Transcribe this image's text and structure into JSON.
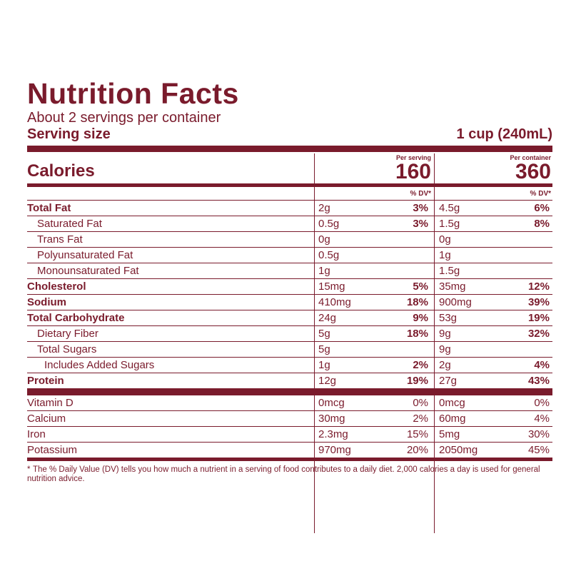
{
  "label": {
    "title": "Nutrition Facts",
    "servings": "About 2 servings per container",
    "serving_size_label": "Serving size",
    "serving_size_value": "1 cup (240mL)",
    "calories_label": "Calories",
    "per_serving_label": "Per serving",
    "per_container_label": "Per container",
    "calories_serving": "160",
    "calories_container": "360",
    "dv_header": "% DV*",
    "nutrients": [
      {
        "name": "Total Fat",
        "s_amt": "2g",
        "s_dv": "3%",
        "c_amt": "4.5g",
        "c_dv": "6%"
      },
      {
        "name": "Saturated Fat",
        "s_amt": "0.5g",
        "s_dv": "3%",
        "c_amt": "1.5g",
        "c_dv": "8%"
      },
      {
        "name": "Trans Fat",
        "s_amt": "0g",
        "s_dv": "",
        "c_amt": "0g",
        "c_dv": ""
      },
      {
        "name": "Polyunsaturated Fat",
        "s_amt": "0.5g",
        "s_dv": "",
        "c_amt": "1g",
        "c_dv": ""
      },
      {
        "name": "Monounsaturated Fat",
        "s_amt": "1g",
        "s_dv": "",
        "c_amt": "1.5g",
        "c_dv": ""
      },
      {
        "name": "Cholesterol",
        "s_amt": "15mg",
        "s_dv": "5%",
        "c_amt": "35mg",
        "c_dv": "12%"
      },
      {
        "name": "Sodium",
        "s_amt": "410mg",
        "s_dv": "18%",
        "c_amt": "900mg",
        "c_dv": "39%"
      },
      {
        "name": "Total Carbohydrate",
        "s_amt": "24g",
        "s_dv": "9%",
        "c_amt": "53g",
        "c_dv": "19%"
      },
      {
        "name": "Dietary Fiber",
        "s_amt": "5g",
        "s_dv": "18%",
        "c_amt": "9g",
        "c_dv": "32%"
      },
      {
        "name": "Total Sugars",
        "s_amt": "5g",
        "s_dv": "",
        "c_amt": "9g",
        "c_dv": ""
      },
      {
        "name": "Includes Added Sugars",
        "s_amt": "1g",
        "s_dv": "2%",
        "c_amt": "2g",
        "c_dv": "4%"
      },
      {
        "name": "Protein",
        "s_amt": "12g",
        "s_dv": "19%",
        "c_amt": "27g",
        "c_dv": "43%"
      }
    ],
    "vitamins": [
      {
        "name": "Vitamin D",
        "s_amt": "0mcg",
        "s_dv": "0%",
        "c_amt": "0mcg",
        "c_dv": "0%"
      },
      {
        "name": "Calcium",
        "s_amt": "30mg",
        "s_dv": "2%",
        "c_amt": "60mg",
        "c_dv": "4%"
      },
      {
        "name": "Iron",
        "s_amt": "2.3mg",
        "s_dv": "15%",
        "c_amt": "5mg",
        "c_dv": "30%"
      },
      {
        "name": "Potassium",
        "s_amt": "970mg",
        "s_dv": "20%",
        "c_amt": "2050mg",
        "c_dv": "45%"
      }
    ],
    "footnote_mark": "*",
    "footnote": "The % Daily Value (DV) tells you how much a nutrient in a serving of food contributes to a daily diet. 2,000 calories a day is used for general nutrition advice.",
    "colors": {
      "ink": "#7a1b2c",
      "background": "#ffffff"
    }
  }
}
